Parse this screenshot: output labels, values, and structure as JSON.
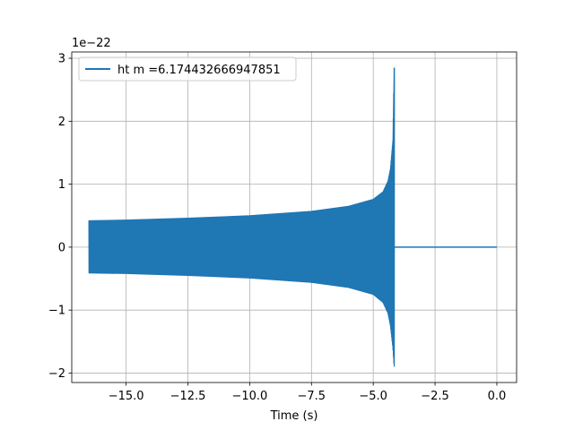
{
  "chart_data": {
    "type": "line",
    "title": "",
    "xlabel": "Time (s)",
    "ylabel": "",
    "y_offset_text": "1e−22",
    "xlim": [
      -17.2,
      0.8
    ],
    "ylim": [
      -2.15,
      3.1
    ],
    "x_ticks": [
      -15.0,
      -12.5,
      -10.0,
      -7.5,
      -5.0,
      -2.5,
      0.0
    ],
    "x_tick_labels": [
      "−15.0",
      "−12.5",
      "−10.0",
      "−7.5",
      "−5.0",
      "−2.5",
      "0.0"
    ],
    "y_ticks": [
      -2,
      -1,
      0,
      1,
      2,
      3
    ],
    "y_tick_labels": [
      "−2",
      "−1",
      "0",
      "1",
      "2",
      "3"
    ],
    "grid": true,
    "legend_position": "top-left",
    "series": [
      {
        "name": "ht m =6.174432666947851",
        "color": "#1f77b4",
        "start_x": -16.5,
        "merger_x": -4.15,
        "end_x": 0.0,
        "upper_envelope": {
          "x": [
            -16.5,
            -15.0,
            -12.5,
            -10.0,
            -7.5,
            -6.0,
            -5.0,
            -4.6,
            -4.4,
            -4.3,
            -4.2,
            -4.15
          ],
          "y": [
            0.42,
            0.43,
            0.46,
            0.5,
            0.57,
            0.65,
            0.76,
            0.88,
            1.05,
            1.25,
            1.7,
            2.85
          ]
        },
        "lower_envelope": {
          "x": [
            -16.5,
            -15.0,
            -12.5,
            -10.0,
            -7.5,
            -6.0,
            -5.0,
            -4.6,
            -4.4,
            -4.3,
            -4.2,
            -4.15
          ],
          "y": [
            -0.41,
            -0.42,
            -0.45,
            -0.49,
            -0.56,
            -0.64,
            -0.75,
            -0.88,
            -1.05,
            -1.25,
            -1.6,
            -1.9
          ]
        },
        "post_merger_value": 0.0
      }
    ]
  }
}
